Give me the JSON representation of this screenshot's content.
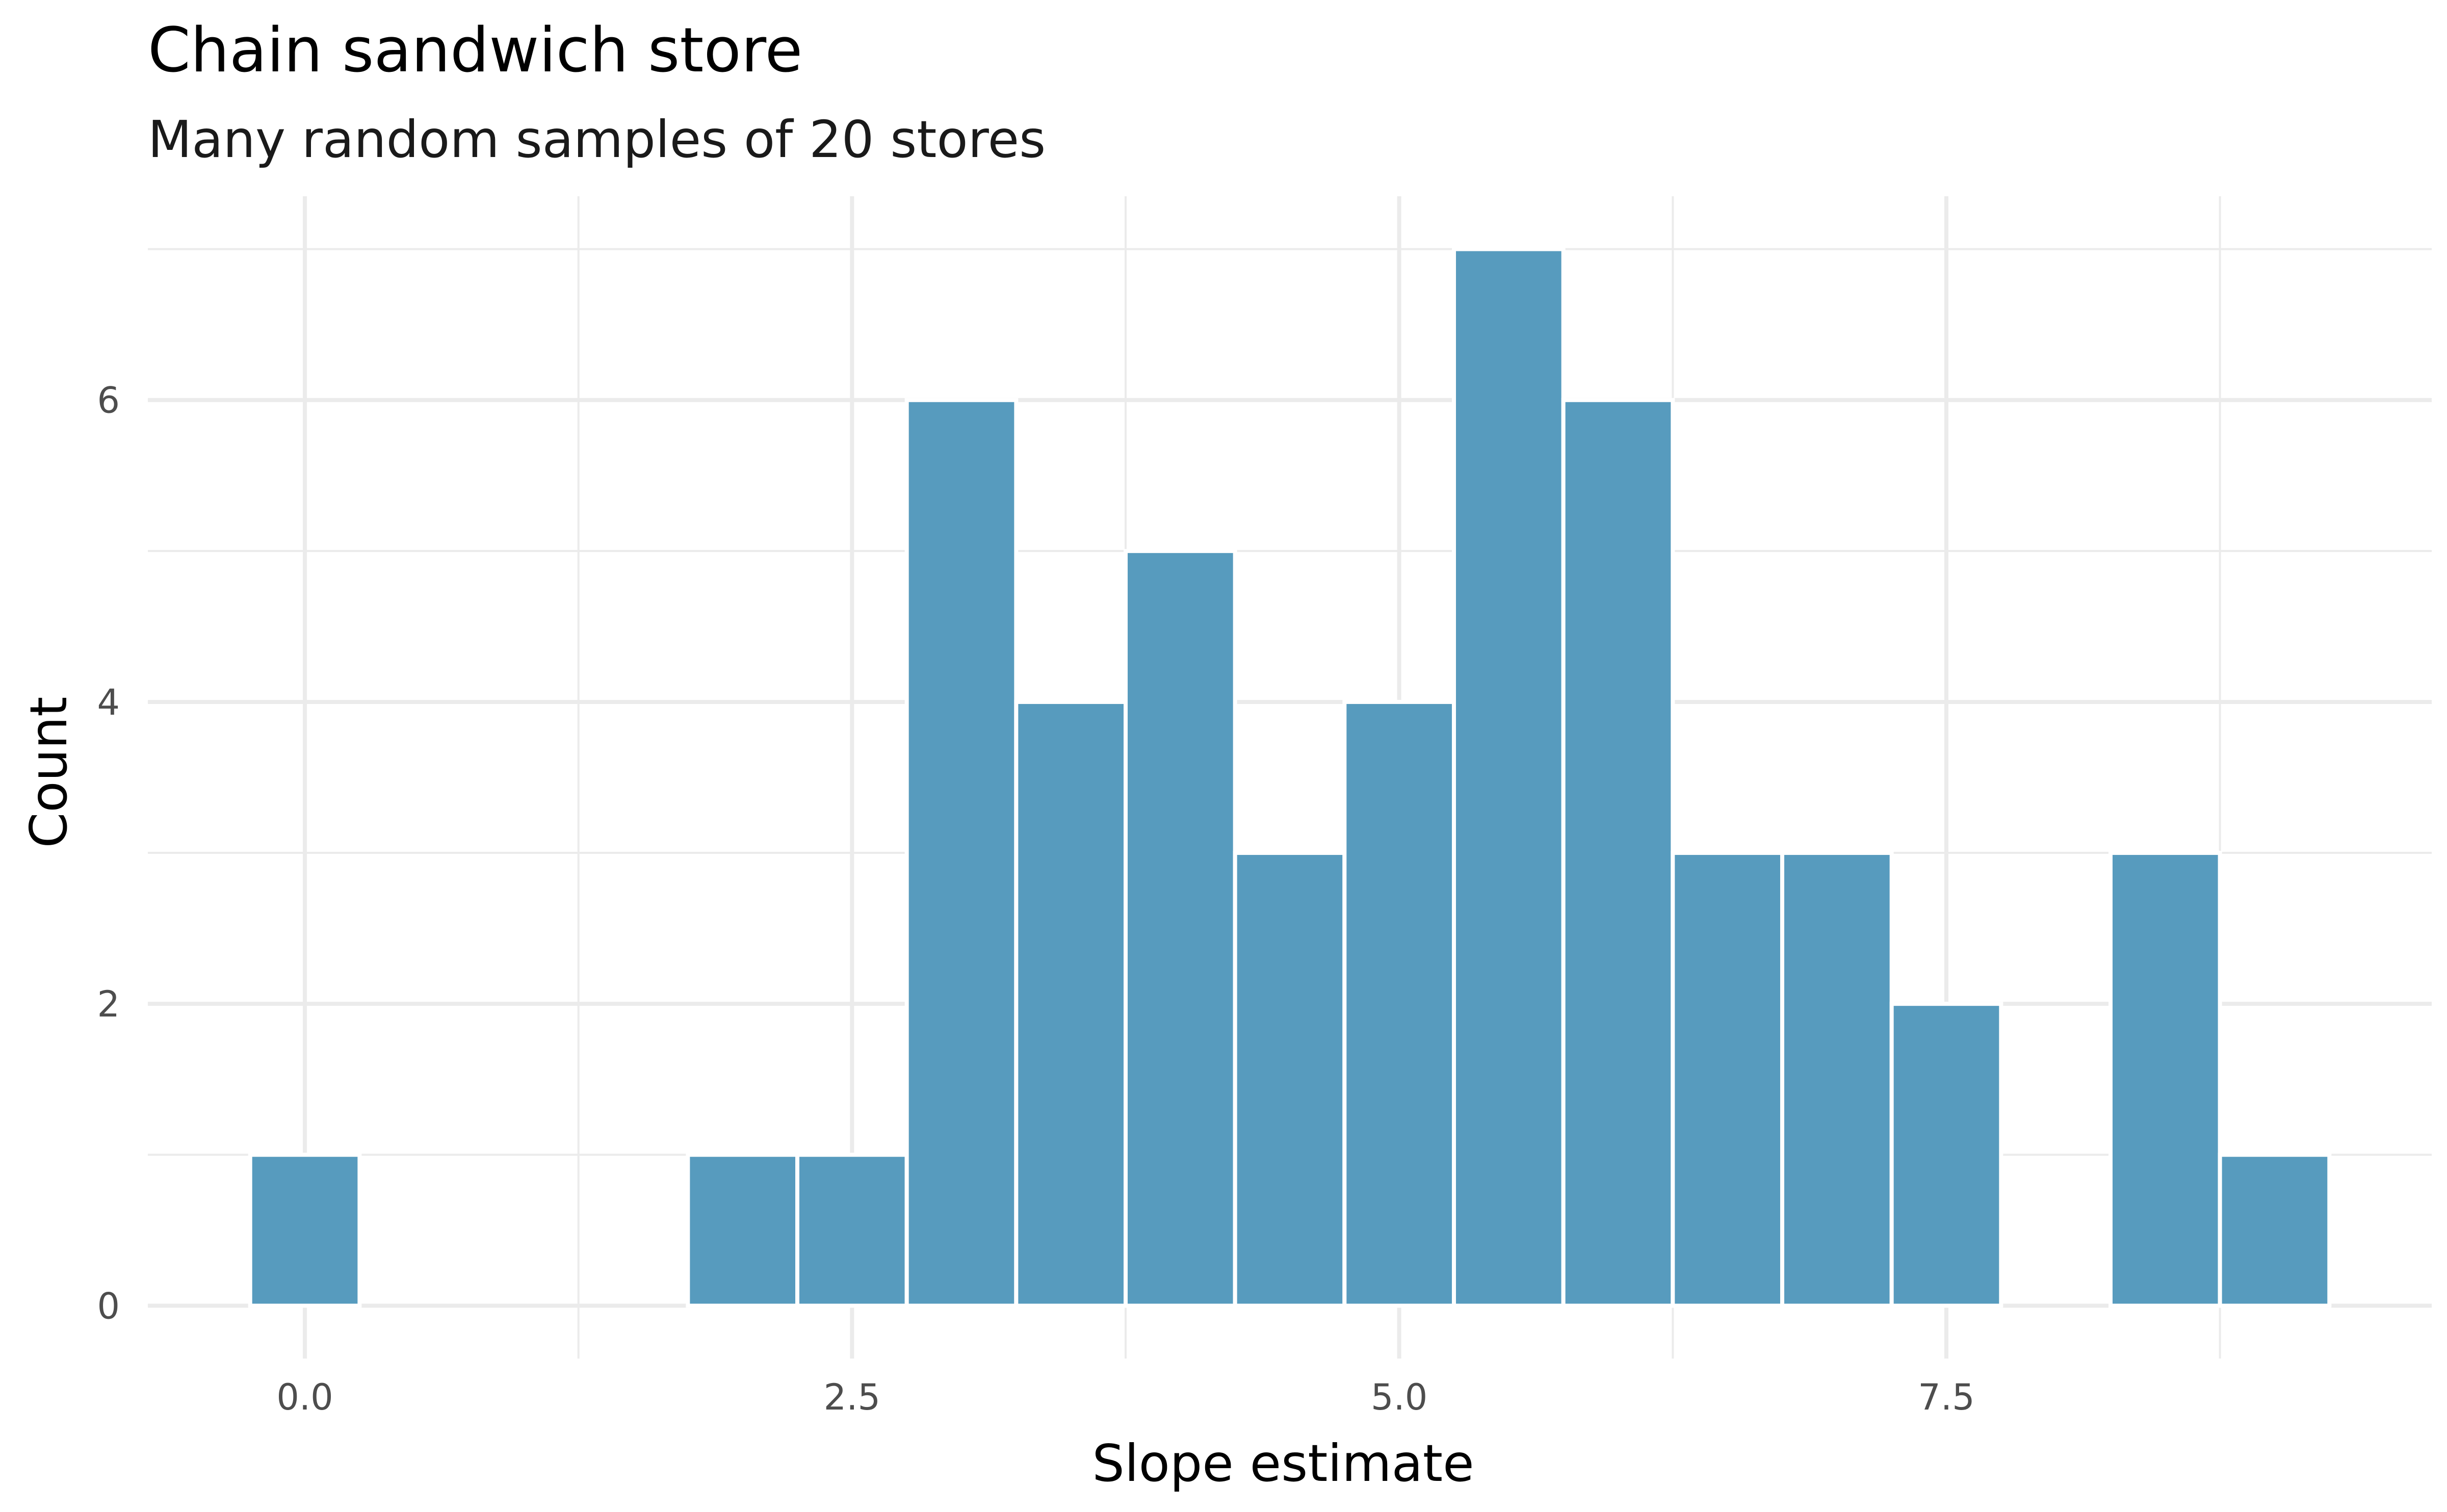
{
  "chart_data": {
    "type": "bar",
    "title": "Chain sandwich store",
    "subtitle": "Many random samples of 20 stores",
    "xlabel": "Slope estimate",
    "ylabel": "Count",
    "bin_width": 0.5,
    "bins": [
      {
        "x": 0.0,
        "count": 1
      },
      {
        "x": 0.5,
        "count": 0
      },
      {
        "x": 1.0,
        "count": 0
      },
      {
        "x": 1.5,
        "count": 0
      },
      {
        "x": 2.0,
        "count": 1
      },
      {
        "x": 2.5,
        "count": 1
      },
      {
        "x": 3.0,
        "count": 6
      },
      {
        "x": 3.5,
        "count": 4
      },
      {
        "x": 4.0,
        "count": 5
      },
      {
        "x": 4.5,
        "count": 3
      },
      {
        "x": 5.0,
        "count": 4
      },
      {
        "x": 5.5,
        "count": 7
      },
      {
        "x": 6.0,
        "count": 6
      },
      {
        "x": 6.5,
        "count": 3
      },
      {
        "x": 7.0,
        "count": 3
      },
      {
        "x": 7.5,
        "count": 2
      },
      {
        "x": 8.0,
        "count": 0
      },
      {
        "x": 8.5,
        "count": 3
      },
      {
        "x": 9.0,
        "count": 1
      }
    ],
    "x_ticks": [
      "0.0",
      "2.5",
      "5.0",
      "7.5"
    ],
    "x_tick_values": [
      0,
      2.5,
      5,
      7.5
    ],
    "y_ticks": [
      "0",
      "2",
      "4",
      "6"
    ],
    "y_tick_values": [
      0,
      2,
      4,
      6
    ],
    "xlim": [
      -0.7175,
      9.7175
    ],
    "ylim": [
      -0.35,
      7.35
    ],
    "grid": true,
    "legend": "none",
    "bar_color": "#579bbe"
  }
}
